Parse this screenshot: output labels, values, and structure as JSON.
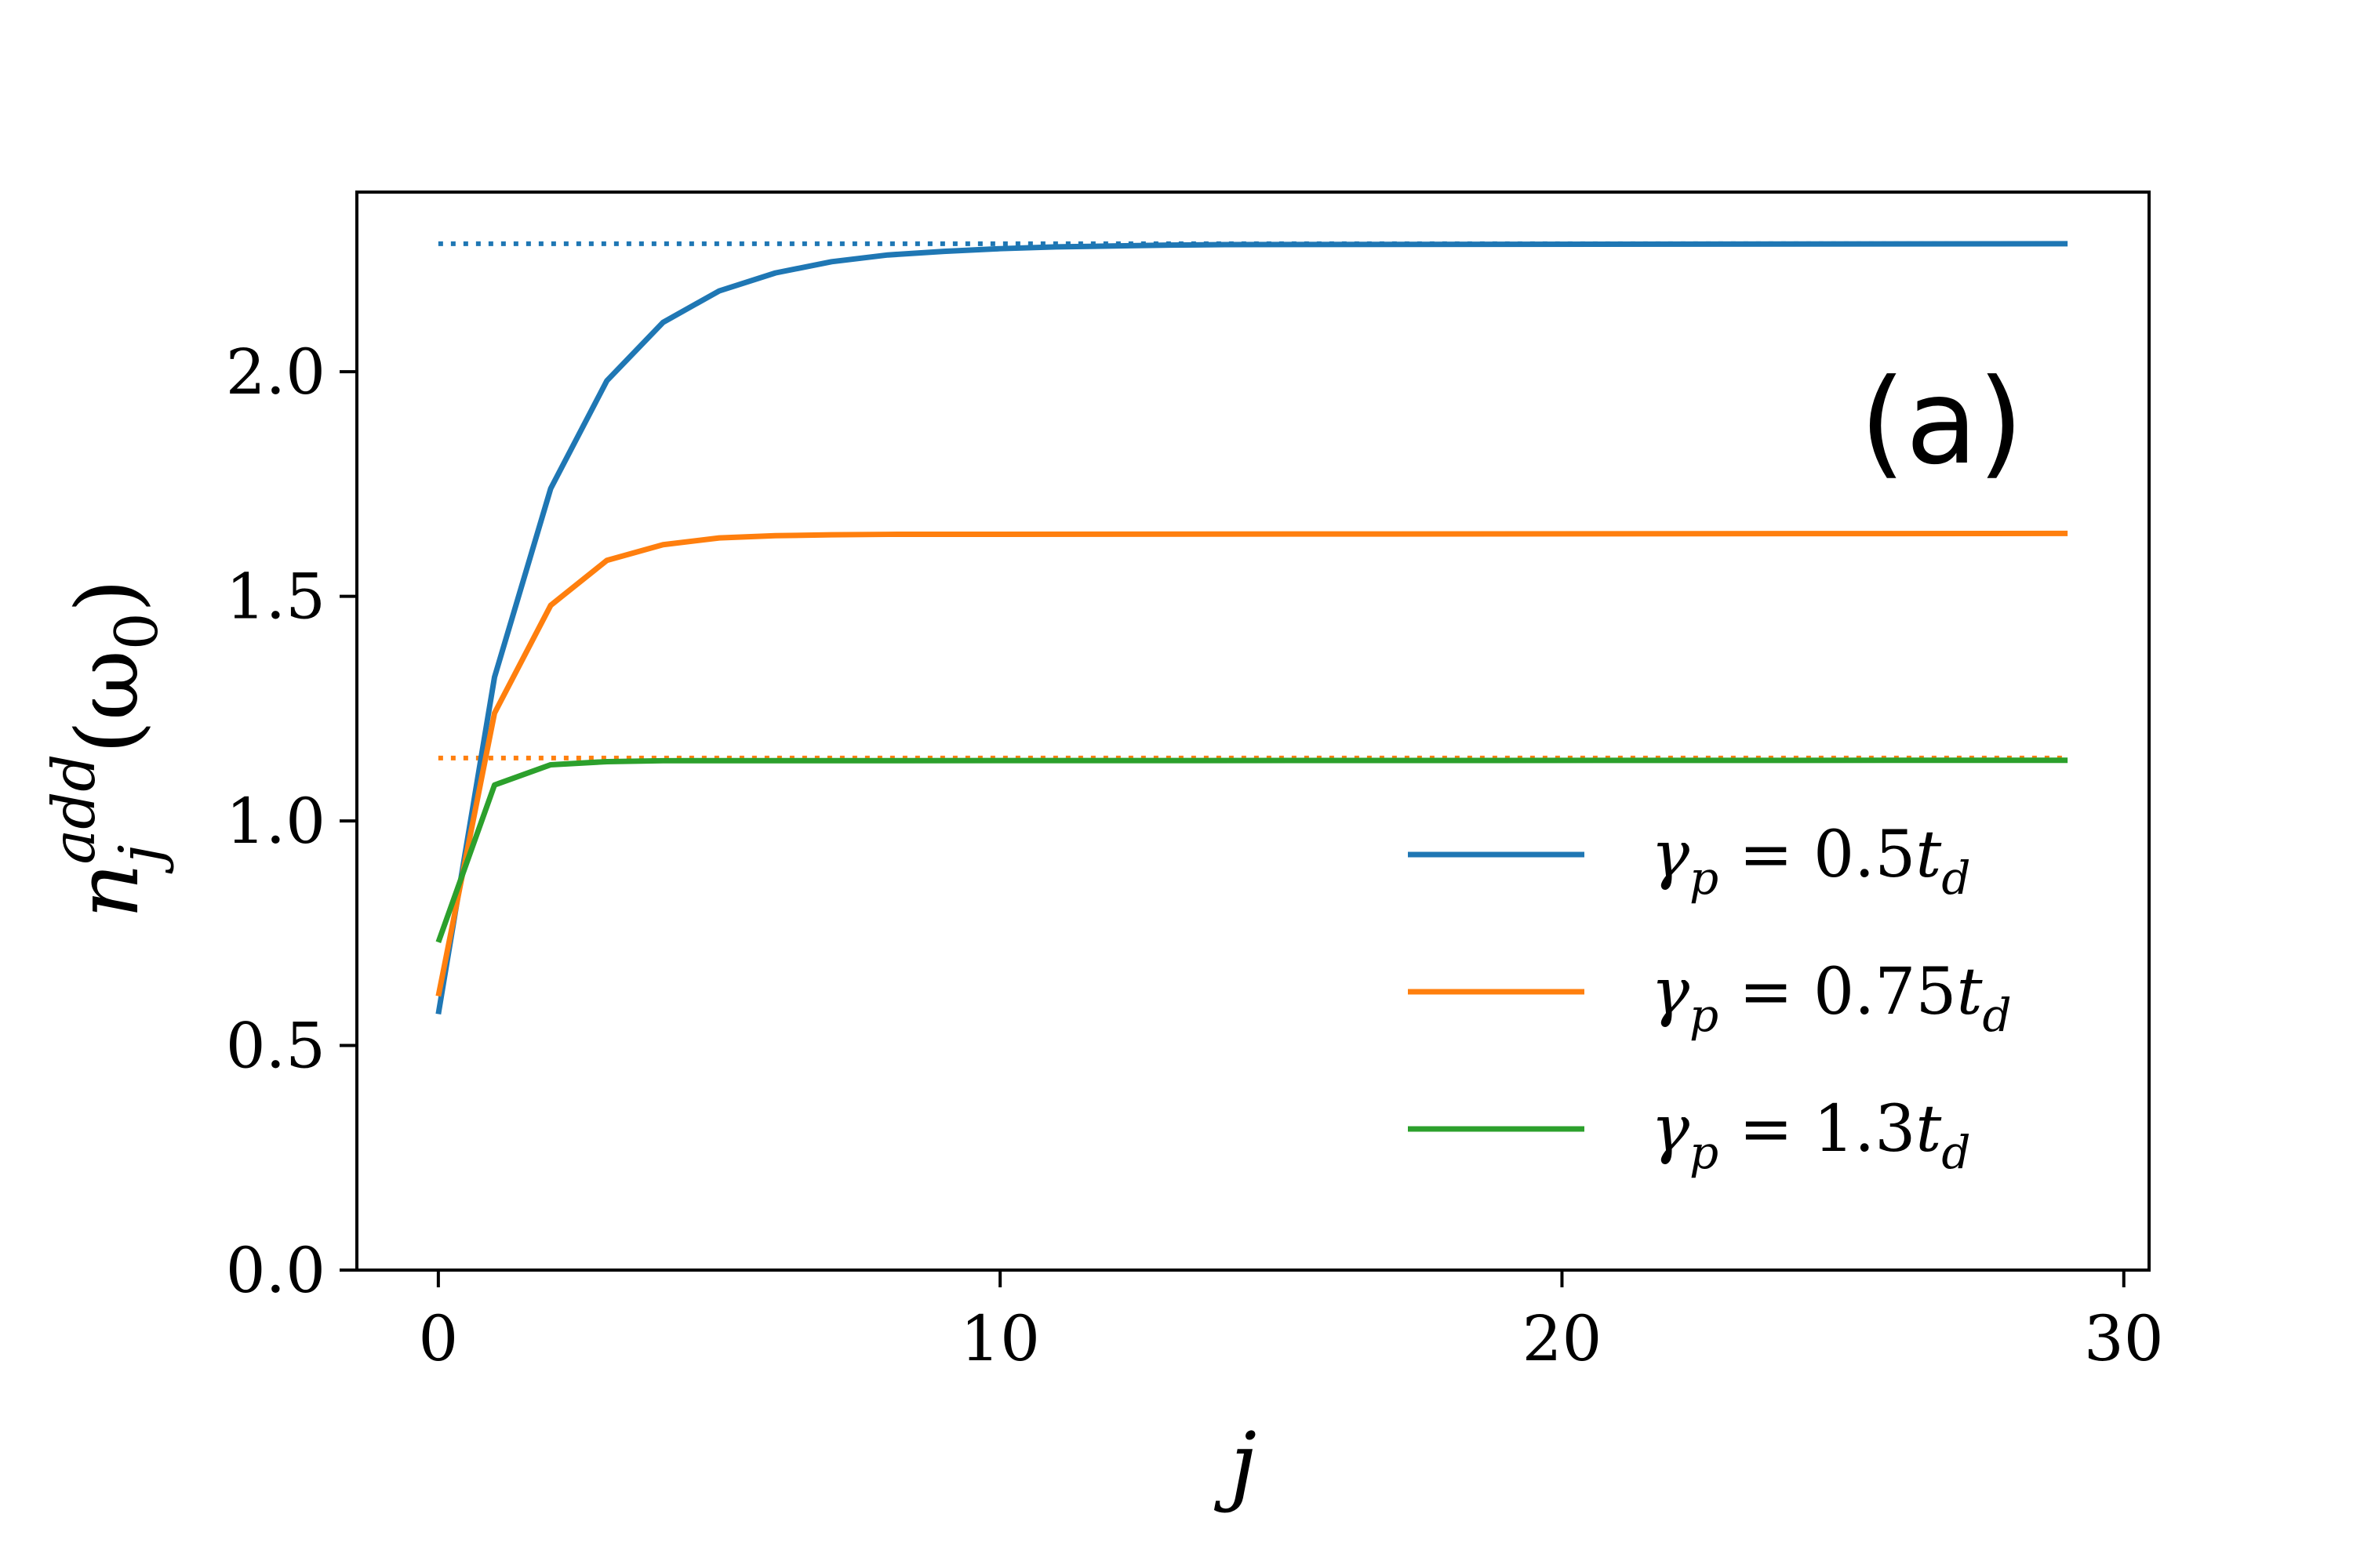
{
  "chart_data": {
    "type": "line",
    "panel_label": "(a)",
    "xlabel": "j",
    "ylabel": {
      "base": "n",
      "sub": "j",
      "sup": "add",
      "arg": "(ω",
      "arg_sub": "0",
      "arg_close": ")"
    },
    "xlim": [
      -1.45,
      30.45
    ],
    "ylim": [
      0.0,
      2.4
    ],
    "xticks": [
      0,
      10,
      20,
      30
    ],
    "xtick_labels": [
      "0",
      "10",
      "20",
      "30"
    ],
    "yticks": [
      0.0,
      0.5,
      1.0,
      1.5,
      2.0
    ],
    "ytick_labels": [
      "0.0",
      "0.5",
      "1.0",
      "1.5",
      "2.0"
    ],
    "legend_position": "center-right",
    "series": [
      {
        "name": "γ_p = 0.5t_d",
        "legend": {
          "sym": "γ",
          "sub": "p",
          "rest": " = 0.5",
          "t": "t",
          "tsub": "d"
        },
        "color": "#1f77b4",
        "x": [
          0,
          1,
          2,
          3,
          4,
          5,
          6,
          7,
          8,
          9,
          10,
          11,
          12,
          13,
          14,
          29
        ],
        "y": [
          0.57,
          1.32,
          1.74,
          1.98,
          2.11,
          2.18,
          2.22,
          2.245,
          2.26,
          2.268,
          2.274,
          2.278,
          2.28,
          2.282,
          2.283,
          2.285
        ]
      },
      {
        "name": "γ_p = 0.75t_d",
        "legend": {
          "sym": "γ",
          "sub": "p",
          "rest": " = 0.75",
          "t": "t",
          "tsub": "d"
        },
        "color": "#ff7f0e",
        "x": [
          0,
          1,
          2,
          3,
          4,
          5,
          6,
          7,
          8,
          29
        ],
        "y": [
          0.61,
          1.24,
          1.48,
          1.58,
          1.615,
          1.63,
          1.635,
          1.637,
          1.638,
          1.64
        ]
      },
      {
        "name": "γ_p = 1.3t_d",
        "legend": {
          "sym": "γ",
          "sub": "p",
          "rest": " = 1.3",
          "t": "t",
          "tsub": "d"
        },
        "color": "#2ca02c",
        "x": [
          0,
          1,
          2,
          3,
          4,
          29
        ],
        "y": [
          0.73,
          1.08,
          1.125,
          1.132,
          1.134,
          1.135
        ]
      }
    ],
    "reference_lines": [
      {
        "color": "#1f77b4",
        "style": "dotted",
        "x": [
          0,
          29
        ],
        "y": 2.285
      },
      {
        "color": "#ff7f0e",
        "style": "dotted",
        "x": [
          0,
          29
        ],
        "y": 1.14
      }
    ]
  }
}
